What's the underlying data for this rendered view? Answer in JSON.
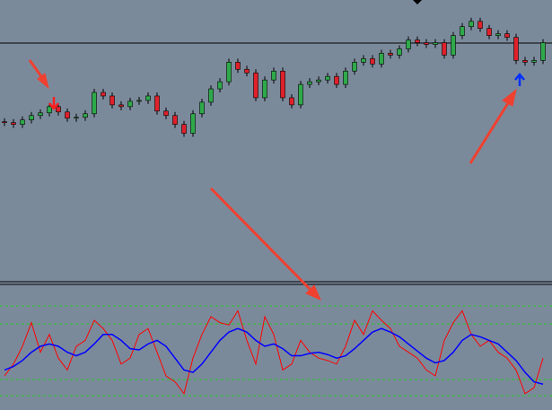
{
  "chart_data": [
    {
      "type": "candlestick",
      "ylim": [
        0,
        315
      ],
      "up_color": "#2eaa4a",
      "down_color": "#e0202a",
      "open": [
        178,
        177,
        175,
        180,
        185,
        188,
        195,
        189,
        182,
        183,
        187,
        211,
        207,
        197,
        195,
        201,
        202,
        207,
        190,
        185,
        175,
        165,
        187,
        200,
        215,
        223,
        245,
        237,
        233,
        205,
        225,
        235,
        205,
        197,
        220,
        223,
        225,
        229,
        220,
        235,
        245,
        249,
        243,
        255,
        253,
        260,
        270,
        267,
        265,
        267,
        253,
        275,
        285,
        291,
        283,
        275,
        277,
        273,
        247,
        245,
        247
      ],
      "high": [
        182,
        181,
        184,
        189,
        192,
        199,
        199,
        193,
        187,
        191,
        215,
        215,
        211,
        201,
        205,
        206,
        211,
        211,
        194,
        189,
        179,
        191,
        204,
        219,
        227,
        249,
        249,
        241,
        237,
        229,
        239,
        239,
        209,
        224,
        227,
        229,
        233,
        233,
        239,
        249,
        253,
        253,
        259,
        259,
        264,
        274,
        274,
        271,
        271,
        271,
        279,
        289,
        295,
        295,
        287,
        281,
        281,
        277,
        251,
        251,
        271
      ],
      "low": [
        173,
        171,
        171,
        176,
        181,
        184,
        185,
        178,
        178,
        179,
        183,
        203,
        193,
        191,
        191,
        197,
        198,
        186,
        181,
        171,
        161,
        161,
        183,
        196,
        211,
        219,
        233,
        229,
        201,
        201,
        221,
        201,
        193,
        193,
        216,
        219,
        221,
        216,
        216,
        231,
        241,
        239,
        239,
        249,
        249,
        256,
        263,
        261,
        261,
        249,
        249,
        271,
        281,
        279,
        271,
        271,
        269,
        243,
        241,
        241,
        243
      ],
      "close": [
        177,
        175,
        180,
        185,
        188,
        195,
        189,
        182,
        183,
        187,
        211,
        207,
        197,
        195,
        201,
        202,
        207,
        190,
        185,
        175,
        165,
        187,
        200,
        215,
        223,
        245,
        237,
        233,
        205,
        225,
        235,
        205,
        197,
        220,
        223,
        225,
        229,
        220,
        235,
        245,
        249,
        243,
        255,
        253,
        260,
        270,
        267,
        265,
        267,
        253,
        275,
        285,
        291,
        283,
        275,
        277,
        273,
        247,
        245,
        247,
        267
      ]
    },
    {
      "type": "line",
      "ylim": [
        0,
        100
      ],
      "series": [
        {
          "color": "#ff0000",
          "values": [
            25,
            35,
            50,
            70,
            45,
            60,
            40,
            30,
            50,
            55,
            72,
            65,
            55,
            35,
            40,
            60,
            65,
            45,
            25,
            20,
            10,
            40,
            60,
            75,
            70,
            68,
            80,
            55,
            35,
            75,
            60,
            30,
            35,
            55,
            45,
            40,
            38,
            35,
            50,
            72,
            60,
            80,
            72,
            65,
            50,
            45,
            40,
            30,
            25,
            55,
            70,
            80,
            60,
            50,
            55,
            45,
            40,
            30,
            10,
            15,
            40
          ]
        },
        {
          "color": "#0000ff",
          "values": [
            30,
            33,
            38,
            45,
            50,
            52,
            50,
            45,
            42,
            45,
            52,
            60,
            60,
            55,
            48,
            47,
            52,
            55,
            50,
            40,
            30,
            28,
            35,
            45,
            55,
            62,
            65,
            62,
            55,
            50,
            52,
            48,
            42,
            42,
            44,
            45,
            43,
            40,
            42,
            48,
            55,
            62,
            65,
            62,
            58,
            52,
            46,
            40,
            36,
            38,
            45,
            55,
            60,
            58,
            55,
            52,
            45,
            38,
            28,
            20,
            18
          ]
        }
      ]
    }
  ]
}
